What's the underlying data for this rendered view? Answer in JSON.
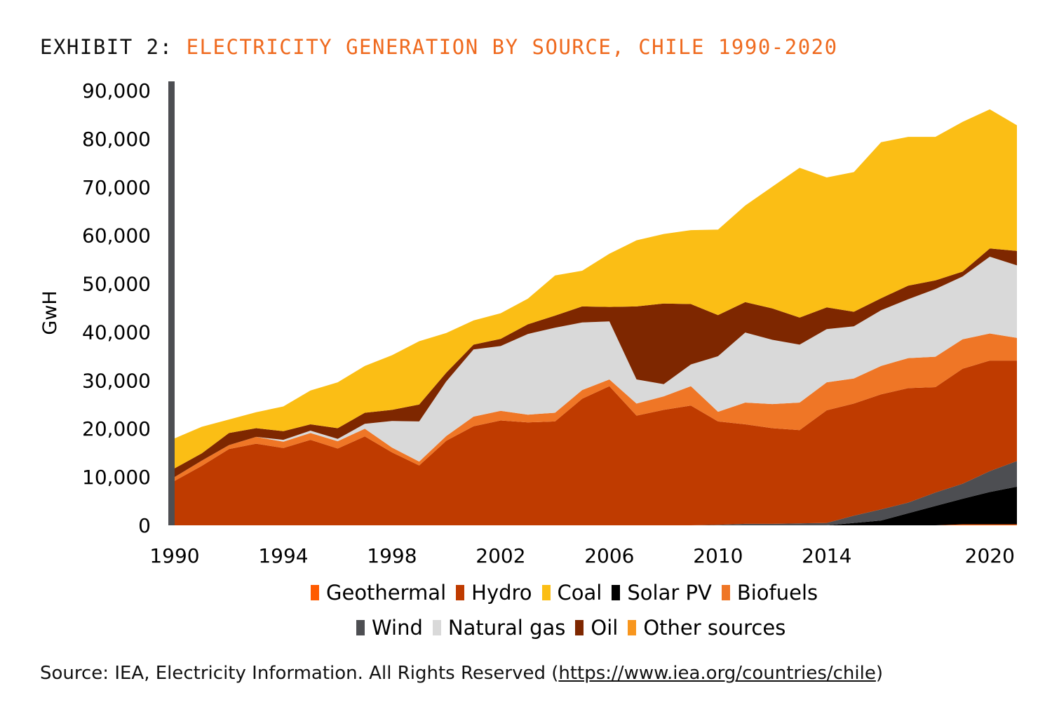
{
  "title": {
    "lead": "EXHIBIT 2:",
    "rest": "ELECTRICITY GENERATION BY SOURCE, CHILE 1990-2020"
  },
  "source": {
    "prefix": "Source: IEA, Electricity Information. All Rights Reserved (",
    "link": "https://www.iea.org/countries/chile",
    "suffix": ")"
  },
  "chart_data": {
    "type": "area",
    "stacked": true,
    "title": "ELECTRICITY GENERATION BY SOURCE, CHILE 1990-2020",
    "ylabel": "GwH",
    "xlabel": "",
    "ylim": [
      0,
      90000
    ],
    "xlim": [
      1990,
      2021
    ],
    "y_ticks": [
      "0",
      "10,000",
      "20,000",
      "30,000",
      "40,000",
      "50,000",
      "60,000",
      "70,000",
      "80,000",
      "90,000"
    ],
    "x_ticks": [
      "1990",
      "1994",
      "1998",
      "2002",
      "2006",
      "2010",
      "2014",
      "2020"
    ],
    "x": [
      1990,
      1991,
      1992,
      1993,
      1994,
      1995,
      1996,
      1997,
      1998,
      1999,
      2000,
      2001,
      2002,
      2003,
      2004,
      2005,
      2006,
      2007,
      2008,
      2009,
      2010,
      2011,
      2012,
      2013,
      2014,
      2015,
      2016,
      2017,
      2018,
      2019,
      2020,
      2021
    ],
    "series": [
      {
        "name": "Geothermal",
        "color": "#ff5b00",
        "values": [
          0,
          0,
          0,
          0,
          0,
          0,
          0,
          0,
          0,
          0,
          0,
          0,
          0,
          0,
          0,
          0,
          0,
          0,
          0,
          0,
          0,
          0,
          0,
          0,
          0,
          0,
          0,
          0,
          0,
          200,
          200,
          200
        ]
      },
      {
        "name": "Solar PV",
        "color": "#000000",
        "values": [
          0,
          0,
          0,
          0,
          0,
          0,
          0,
          0,
          0,
          0,
          0,
          0,
          0,
          0,
          0,
          0,
          0,
          0,
          0,
          0,
          0,
          0,
          0,
          0,
          0,
          500,
          1000,
          2500,
          4000,
          5300,
          6700,
          7800
        ]
      },
      {
        "name": "Wind",
        "color": "#4d4e52",
        "values": [
          0,
          0,
          0,
          0,
          0,
          0,
          0,
          0,
          0,
          0,
          0,
          0,
          0,
          0,
          0,
          0,
          0,
          0,
          0,
          0,
          100,
          300,
          300,
          400,
          500,
          1500,
          2300,
          2200,
          2800,
          3100,
          4300,
          5300
        ]
      },
      {
        "name": "Hydro",
        "color": "#bf3b00",
        "values": [
          9200,
          12300,
          15800,
          16900,
          16000,
          17700,
          15900,
          18400,
          15100,
          12400,
          17500,
          20500,
          21700,
          21300,
          21500,
          26200,
          28800,
          22700,
          23900,
          24800,
          21400,
          20600,
          19800,
          19300,
          23300,
          23200,
          23800,
          23700,
          21800,
          23800,
          22900,
          20800
        ]
      },
      {
        "name": "Biofuels",
        "color": "#ef7626",
        "values": [
          800,
          1100,
          800,
          1400,
          1300,
          1400,
          1500,
          1600,
          1000,
          800,
          1000,
          2000,
          2000,
          1600,
          1800,
          1800,
          1400,
          2500,
          2800,
          4000,
          2000,
          4500,
          5000,
          5700,
          5800,
          5200,
          5900,
          6200,
          6300,
          6100,
          5600,
          4700
        ]
      },
      {
        "name": "Other sources",
        "color": "#f8961e",
        "values": [
          0,
          0,
          0,
          0,
          0,
          0,
          0,
          0,
          0,
          0,
          0,
          0,
          0,
          0,
          0,
          0,
          0,
          0,
          0,
          0,
          0,
          0,
          0,
          0,
          0,
          0,
          0,
          0,
          0,
          0,
          0,
          0
        ]
      },
      {
        "name": "Natural gas",
        "color": "#d9d9d9",
        "values": [
          0,
          0,
          0,
          0,
          400,
          500,
          500,
          1000,
          5500,
          8300,
          11300,
          13900,
          13400,
          16700,
          17600,
          14000,
          12000,
          5000,
          2500,
          4500,
          11500,
          14500,
          13300,
          12000,
          11000,
          10800,
          11500,
          12200,
          14000,
          13000,
          15900,
          15000
        ]
      },
      {
        "name": "Oil",
        "color": "#7e2700",
        "values": [
          1800,
          1500,
          2500,
          1800,
          1800,
          1300,
          2200,
          2300,
          2300,
          3500,
          1800,
          1000,
          1500,
          2000,
          2500,
          3300,
          3000,
          15100,
          16700,
          12500,
          8500,
          6300,
          6500,
          5600,
          4500,
          3000,
          2500,
          2800,
          1800,
          1000,
          1700,
          3000
        ]
      },
      {
        "name": "Coal",
        "color": "#fbbe15",
        "values": [
          6200,
          5500,
          2800,
          3300,
          5100,
          7000,
          9500,
          9700,
          11300,
          13100,
          8200,
          5000,
          5300,
          5300,
          8300,
          7400,
          11000,
          13700,
          14400,
          15300,
          17700,
          20000,
          25200,
          31000,
          26900,
          28900,
          32300,
          30800,
          29700,
          31000,
          28800,
          26000
        ]
      }
    ],
    "legend_placement": "bottom",
    "legend_rows": [
      [
        "Geothermal",
        "Hydro",
        "Coal",
        "Solar PV",
        "Biofuels"
      ],
      [
        "Wind",
        "Natural gas",
        "Oil",
        "Other sources"
      ]
    ]
  }
}
